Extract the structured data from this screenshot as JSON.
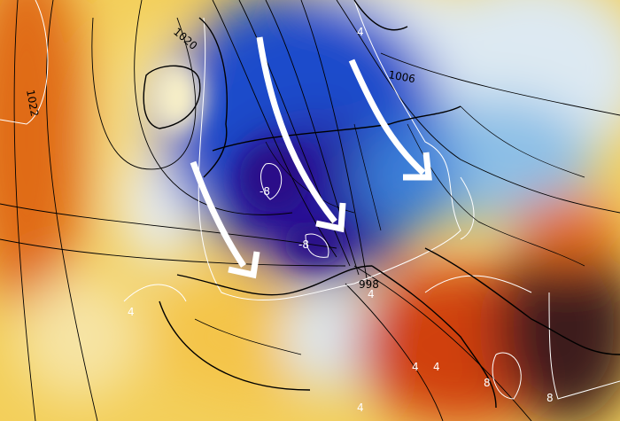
{
  "map": {
    "type": "weather-map",
    "fields": [
      "temperature-anomaly-shading",
      "isobars",
      "isotherms"
    ],
    "colors": {
      "cold_deep": "#2a0f8a",
      "cold": "#1e46c8",
      "cool": "#8cc0e6",
      "neutral": "#f2f4f6",
      "warm": "#f0c040",
      "hot": "#e06010",
      "very_hot": "#b0200a",
      "extreme": "#3a1e1c",
      "arrow": "#ffffff",
      "isobar": "#000000",
      "isotherm": "#ffffff"
    },
    "isobar_labels": [
      "1022",
      "1020",
      "1006",
      "998"
    ],
    "isotherm_labels": [
      "-8",
      "-8",
      "4",
      "4",
      "4",
      "4",
      "4",
      "8",
      "8",
      "4"
    ],
    "arrows": [
      {
        "name": "arrow-west",
        "direction": "south-east"
      },
      {
        "name": "arrow-central",
        "direction": "south-south-east"
      },
      {
        "name": "arrow-east",
        "direction": "south-east"
      }
    ]
  }
}
